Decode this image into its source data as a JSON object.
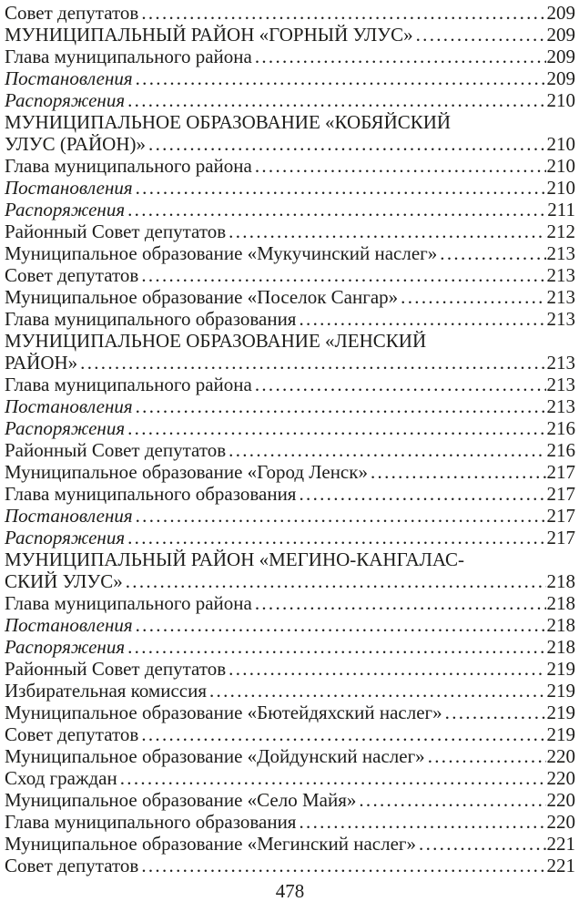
{
  "document": {
    "background_color": "#ffffff",
    "text_color": "#1d1d1b",
    "footer_page_number": "478"
  },
  "toc": {
    "entries": [
      {
        "title": "Совет депутатов",
        "page": "209",
        "style": "regular"
      },
      {
        "title": "МУНИЦИПАЛЬНЫЙ РАЙОН «ГОРНЫЙ УЛУС»",
        "page": "209",
        "style": "caps"
      },
      {
        "title": "Глава муниципального района",
        "page": "209",
        "style": "regular"
      },
      {
        "title": "Постановления",
        "page": "209",
        "style": "italic"
      },
      {
        "title": "Распоряжения",
        "page": "210",
        "style": "italic"
      },
      {
        "title": "МУНИЦИПАЛЬНОЕ ОБРАЗОВАНИЕ «КОБЯЙСКИЙ",
        "title_line2": "УЛУС (РАЙОН)»",
        "page": "210",
        "style": "caps"
      },
      {
        "title": "Глава муниципального района",
        "page": "210",
        "style": "regular"
      },
      {
        "title": "Постановления",
        "page": "210",
        "style": "italic"
      },
      {
        "title": "Распоряжения",
        "page": "211",
        "style": "italic"
      },
      {
        "title": "Районный Совет депутатов",
        "page": "212",
        "style": "regular"
      },
      {
        "title": "Муниципальное образование «Мукучинский наслег»",
        "page": "213",
        "style": "regular"
      },
      {
        "title": "Совет депутатов",
        "page": "213",
        "style": "regular"
      },
      {
        "title": "Муниципальное образование «Поселок Сангар»",
        "page": "213",
        "style": "regular"
      },
      {
        "title": "Глава муниципального образования",
        "page": "213",
        "style": "regular"
      },
      {
        "title": "МУНИЦИПАЛЬНОЕ ОБРАЗОВАНИЕ «ЛЕНСКИЙ",
        "title_line2": "РАЙОН»",
        "page": "213",
        "style": "caps"
      },
      {
        "title": "Глава муниципального района",
        "page": "213",
        "style": "regular"
      },
      {
        "title": "Постановления",
        "page": "213",
        "style": "italic"
      },
      {
        "title": "Распоряжения",
        "page": "216",
        "style": "italic"
      },
      {
        "title": "Районный Совет депутатов",
        "page": "216",
        "style": "regular"
      },
      {
        "title": "Муниципальное образование «Город Ленск»",
        "page": "217",
        "style": "regular"
      },
      {
        "title": "Глава муниципального образования",
        "page": "217",
        "style": "regular"
      },
      {
        "title": "Постановления",
        "page": "217",
        "style": "italic"
      },
      {
        "title": "Распоряжения",
        "page": "217",
        "style": "italic"
      },
      {
        "title": "МУНИЦИПАЛЬНЫЙ РАЙОН «МЕГИНО-КАНГАЛАС-",
        "title_line2": "СКИЙ УЛУС»",
        "page": "218",
        "style": "caps"
      },
      {
        "title": "Глава муниципального района",
        "page": "218",
        "style": "regular"
      },
      {
        "title": "Постановления",
        "page": "218",
        "style": "italic"
      },
      {
        "title": "Распоряжения",
        "page": "218",
        "style": "italic"
      },
      {
        "title": "Районный Совет депутатов",
        "page": "219",
        "style": "regular"
      },
      {
        "title": "Избирательная комиссия",
        "page": "219",
        "style": "regular"
      },
      {
        "title": "Муниципальное образование «Бютейдяхский наслег»",
        "page": "219",
        "style": "regular"
      },
      {
        "title": "Совет депутатов",
        "page": "219",
        "style": "regular"
      },
      {
        "title": "Муниципальное образование «Дойдунский наслег»",
        "page": "220",
        "style": "regular"
      },
      {
        "title": "Сход граждан",
        "page": "220",
        "style": "regular"
      },
      {
        "title": "Муниципальное образование «Село Майя»",
        "page": "220",
        "style": "regular"
      },
      {
        "title": "Глава муниципального образования",
        "page": "220",
        "style": "regular"
      },
      {
        "title": "Муниципальное образование «Мегинский наслег»",
        "page": "221",
        "style": "regular"
      },
      {
        "title": "Совет депутатов",
        "page": "221",
        "style": "regular"
      }
    ]
  }
}
